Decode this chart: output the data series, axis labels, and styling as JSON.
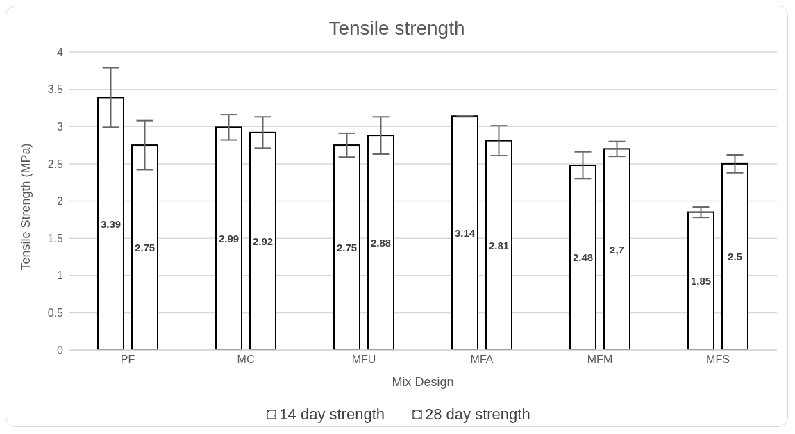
{
  "chart_data": {
    "type": "bar",
    "title": "Tensile strength",
    "xlabel": "Mix Design",
    "ylabel": "Tensile Strength (MPa)",
    "categories": [
      "PF",
      "MC",
      "MFU",
      "MFA",
      "MFM",
      "MFS"
    ],
    "series": [
      {
        "name": "14 day strength",
        "color": "#ffffff",
        "values": [
          3.39,
          2.99,
          2.75,
          3.14,
          2.48,
          1.85
        ],
        "errors": [
          0.4,
          0.17,
          0.16,
          0.01,
          0.18,
          0.07
        ],
        "value_labels": [
          "3.39",
          "2.99",
          "2.75",
          "3.14",
          "2.48",
          "1,85"
        ]
      },
      {
        "name": "28 day strength",
        "color": "#ffffff",
        "values": [
          2.75,
          2.92,
          2.88,
          2.81,
          2.7,
          2.5
        ],
        "errors": [
          0.33,
          0.21,
          0.25,
          0.2,
          0.1,
          0.12
        ],
        "value_labels": [
          "2.75",
          "2.92",
          "2.88",
          "2.81",
          "2,7",
          "2.5"
        ]
      }
    ],
    "ylim": [
      0,
      4
    ],
    "yticks": [
      0,
      0.5,
      1,
      1.5,
      2,
      2.5,
      3,
      3.5,
      4
    ],
    "grid": "y",
    "legend": "bottom"
  }
}
